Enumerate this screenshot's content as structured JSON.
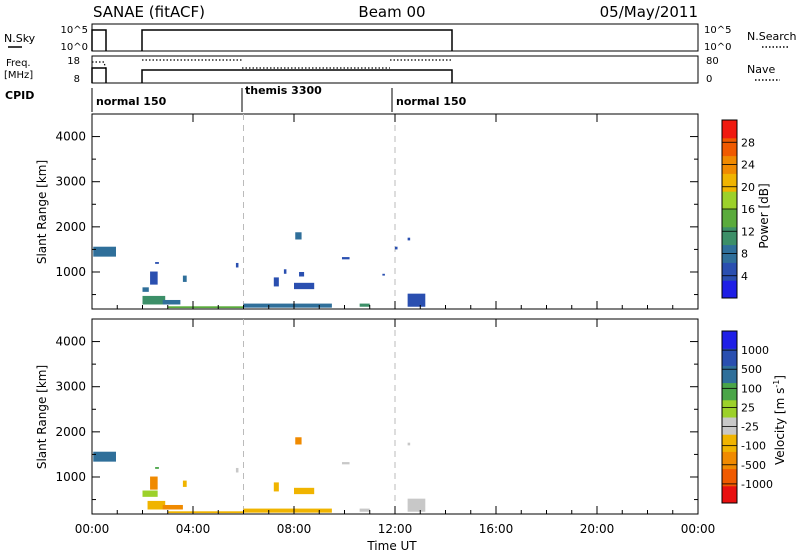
{
  "header": {
    "title": "SANAE (fitACF)",
    "beam": "Beam 00",
    "date": "05/May/2011"
  },
  "top_panels": {
    "nsky": {
      "label": "N.Sky",
      "tick_high": "10^5",
      "tick_low": "10^0",
      "right_tick_high": "10^5",
      "right_tick_low": "10^0",
      "right_label": "N.Search"
    },
    "freq": {
      "label_line1": "Freq.",
      "label_line2": "[MHz]",
      "tick_high": "18",
      "tick_low": "8",
      "right_tick_high": "80",
      "right_tick_low": "0",
      "right_label": "Nave"
    },
    "cpid": {
      "label": "CPID",
      "segments": [
        {
          "name": "normal 150",
          "start_hour": 0,
          "end_hour": 6
        },
        {
          "name": "themis 3300",
          "start_hour": 6,
          "end_hour": 12
        },
        {
          "name": "normal 150",
          "start_hour": 12,
          "end_hour": 24
        }
      ]
    }
  },
  "colors": {
    "power": [
      "#1f1fe6",
      "#2a4fb0",
      "#2f6f9a",
      "#3c8f68",
      "#5aab3c",
      "#9cd12a",
      "#f0b400",
      "#f08a00",
      "#f05a00",
      "#f01a10"
    ],
    "velocity": [
      "#e81010",
      "#f05a00",
      "#f08a00",
      "#f0b400",
      "#c8c8c8",
      "#9cd12a",
      "#4aa548",
      "#2f6f9a",
      "#2a4fb0",
      "#1f1fe6"
    ]
  },
  "chart_data": [
    {
      "type": "heatmap",
      "panel": "power",
      "ylabel": "Slant Range [km]",
      "xlabel": "Time UT",
      "xlim": [
        0,
        24
      ],
      "ylim": [
        180,
        4500
      ],
      "x_tick_labels": [
        "00:00",
        "04:00",
        "08:00",
        "12:00",
        "16:00",
        "20:00",
        "00:00"
      ],
      "y_ticks": [
        1000,
        2000,
        3000,
        4000
      ],
      "colorbar": {
        "label": "Power [dB]",
        "ticks": [
          "4",
          "8",
          "12",
          "16",
          "20",
          "24",
          "28"
        ]
      },
      "cells": [
        {
          "t0": 0.05,
          "t1": 0.95,
          "r0": 1340,
          "r1": 1560,
          "v": 2
        },
        {
          "t0": 2.0,
          "t1": 2.25,
          "r0": 560,
          "r1": 660,
          "v": 2
        },
        {
          "t0": 2.3,
          "t1": 2.6,
          "r0": 720,
          "r1": 1010,
          "v": 1
        },
        {
          "t0": 2.5,
          "t1": 2.65,
          "r0": 1180,
          "r1": 1220,
          "v": 1
        },
        {
          "t0": 2.0,
          "t1": 2.9,
          "r0": 280,
          "r1": 470,
          "v": 3
        },
        {
          "t0": 2.8,
          "t1": 3.5,
          "r0": 280,
          "r1": 380,
          "v": 2
        },
        {
          "t0": 3.6,
          "t1": 3.75,
          "r0": 780,
          "r1": 920,
          "v": 2
        },
        {
          "t0": 3.0,
          "t1": 6.0,
          "r0": 200,
          "r1": 240,
          "v": 4
        },
        {
          "t0": 5.7,
          "t1": 5.8,
          "r0": 1100,
          "r1": 1200,
          "v": 1
        },
        {
          "t0": 6.0,
          "t1": 9.5,
          "r0": 210,
          "r1": 300,
          "v": 2
        },
        {
          "t0": 7.2,
          "t1": 7.4,
          "r0": 680,
          "r1": 880,
          "v": 1
        },
        {
          "t0": 7.6,
          "t1": 7.7,
          "r0": 960,
          "r1": 1060,
          "v": 1
        },
        {
          "t0": 8.05,
          "t1": 8.3,
          "r0": 1720,
          "r1": 1880,
          "v": 2
        },
        {
          "t0": 8.0,
          "t1": 8.8,
          "r0": 620,
          "r1": 760,
          "v": 1
        },
        {
          "t0": 8.2,
          "t1": 8.4,
          "r0": 900,
          "r1": 1000,
          "v": 1
        },
        {
          "t0": 9.9,
          "t1": 10.2,
          "r0": 1280,
          "r1": 1330,
          "v": 1
        },
        {
          "t0": 11.5,
          "t1": 11.6,
          "r0": 920,
          "r1": 960,
          "v": 1
        },
        {
          "t0": 10.6,
          "t1": 11.0,
          "r0": 230,
          "r1": 300,
          "v": 3
        },
        {
          "t0": 12.0,
          "t1": 12.1,
          "r0": 1500,
          "r1": 1560,
          "v": 1
        },
        {
          "t0": 12.5,
          "t1": 12.6,
          "r0": 1700,
          "r1": 1760,
          "v": 1
        },
        {
          "t0": 12.5,
          "t1": 13.2,
          "r0": 230,
          "r1": 520,
          "v": 1
        }
      ]
    },
    {
      "type": "heatmap",
      "panel": "velocity",
      "ylabel": "Slant Range [km]",
      "xlabel": "Time UT",
      "xlim": [
        0,
        24
      ],
      "ylim": [
        180,
        4500
      ],
      "x_tick_labels": [
        "00:00",
        "04:00",
        "08:00",
        "12:00",
        "16:00",
        "20:00",
        "00:00"
      ],
      "y_ticks": [
        1000,
        2000,
        3000,
        4000
      ],
      "colorbar": {
        "label": "Velocity [m s^-1]",
        "ticks": [
          "-1000",
          "-500",
          "-100",
          "-25",
          "25",
          "100",
          "500",
          "1000"
        ]
      },
      "cells": [
        {
          "t0": 0.05,
          "t1": 0.95,
          "r0": 1340,
          "r1": 1560,
          "v": 7
        },
        {
          "t0": 2.0,
          "t1": 2.6,
          "r0": 560,
          "r1": 700,
          "v": 5
        },
        {
          "t0": 2.3,
          "t1": 2.6,
          "r0": 720,
          "r1": 1010,
          "v": 2
        },
        {
          "t0": 2.5,
          "t1": 2.65,
          "r0": 1180,
          "r1": 1220,
          "v": 6
        },
        {
          "t0": 2.2,
          "t1": 2.9,
          "r0": 280,
          "r1": 470,
          "v": 3
        },
        {
          "t0": 2.8,
          "t1": 3.6,
          "r0": 280,
          "r1": 380,
          "v": 2
        },
        {
          "t0": 3.6,
          "t1": 3.75,
          "r0": 780,
          "r1": 920,
          "v": 3
        },
        {
          "t0": 3.0,
          "t1": 6.0,
          "r0": 200,
          "r1": 240,
          "v": 3
        },
        {
          "t0": 5.7,
          "t1": 5.8,
          "r0": 1100,
          "r1": 1200,
          "v": 4
        },
        {
          "t0": 6.0,
          "t1": 9.5,
          "r0": 210,
          "r1": 300,
          "v": 3
        },
        {
          "t0": 7.2,
          "t1": 7.4,
          "r0": 680,
          "r1": 880,
          "v": 3
        },
        {
          "t0": 8.05,
          "t1": 8.3,
          "r0": 1720,
          "r1": 1880,
          "v": 2
        },
        {
          "t0": 8.0,
          "t1": 8.8,
          "r0": 620,
          "r1": 760,
          "v": 3
        },
        {
          "t0": 9.9,
          "t1": 10.2,
          "r0": 1280,
          "r1": 1330,
          "v": 4
        },
        {
          "t0": 10.6,
          "t1": 11.0,
          "r0": 230,
          "r1": 300,
          "v": 4
        },
        {
          "t0": 12.5,
          "t1": 12.6,
          "r0": 1700,
          "r1": 1760,
          "v": 4
        },
        {
          "t0": 12.5,
          "t1": 13.2,
          "r0": 230,
          "r1": 520,
          "v": 4
        }
      ]
    }
  ]
}
